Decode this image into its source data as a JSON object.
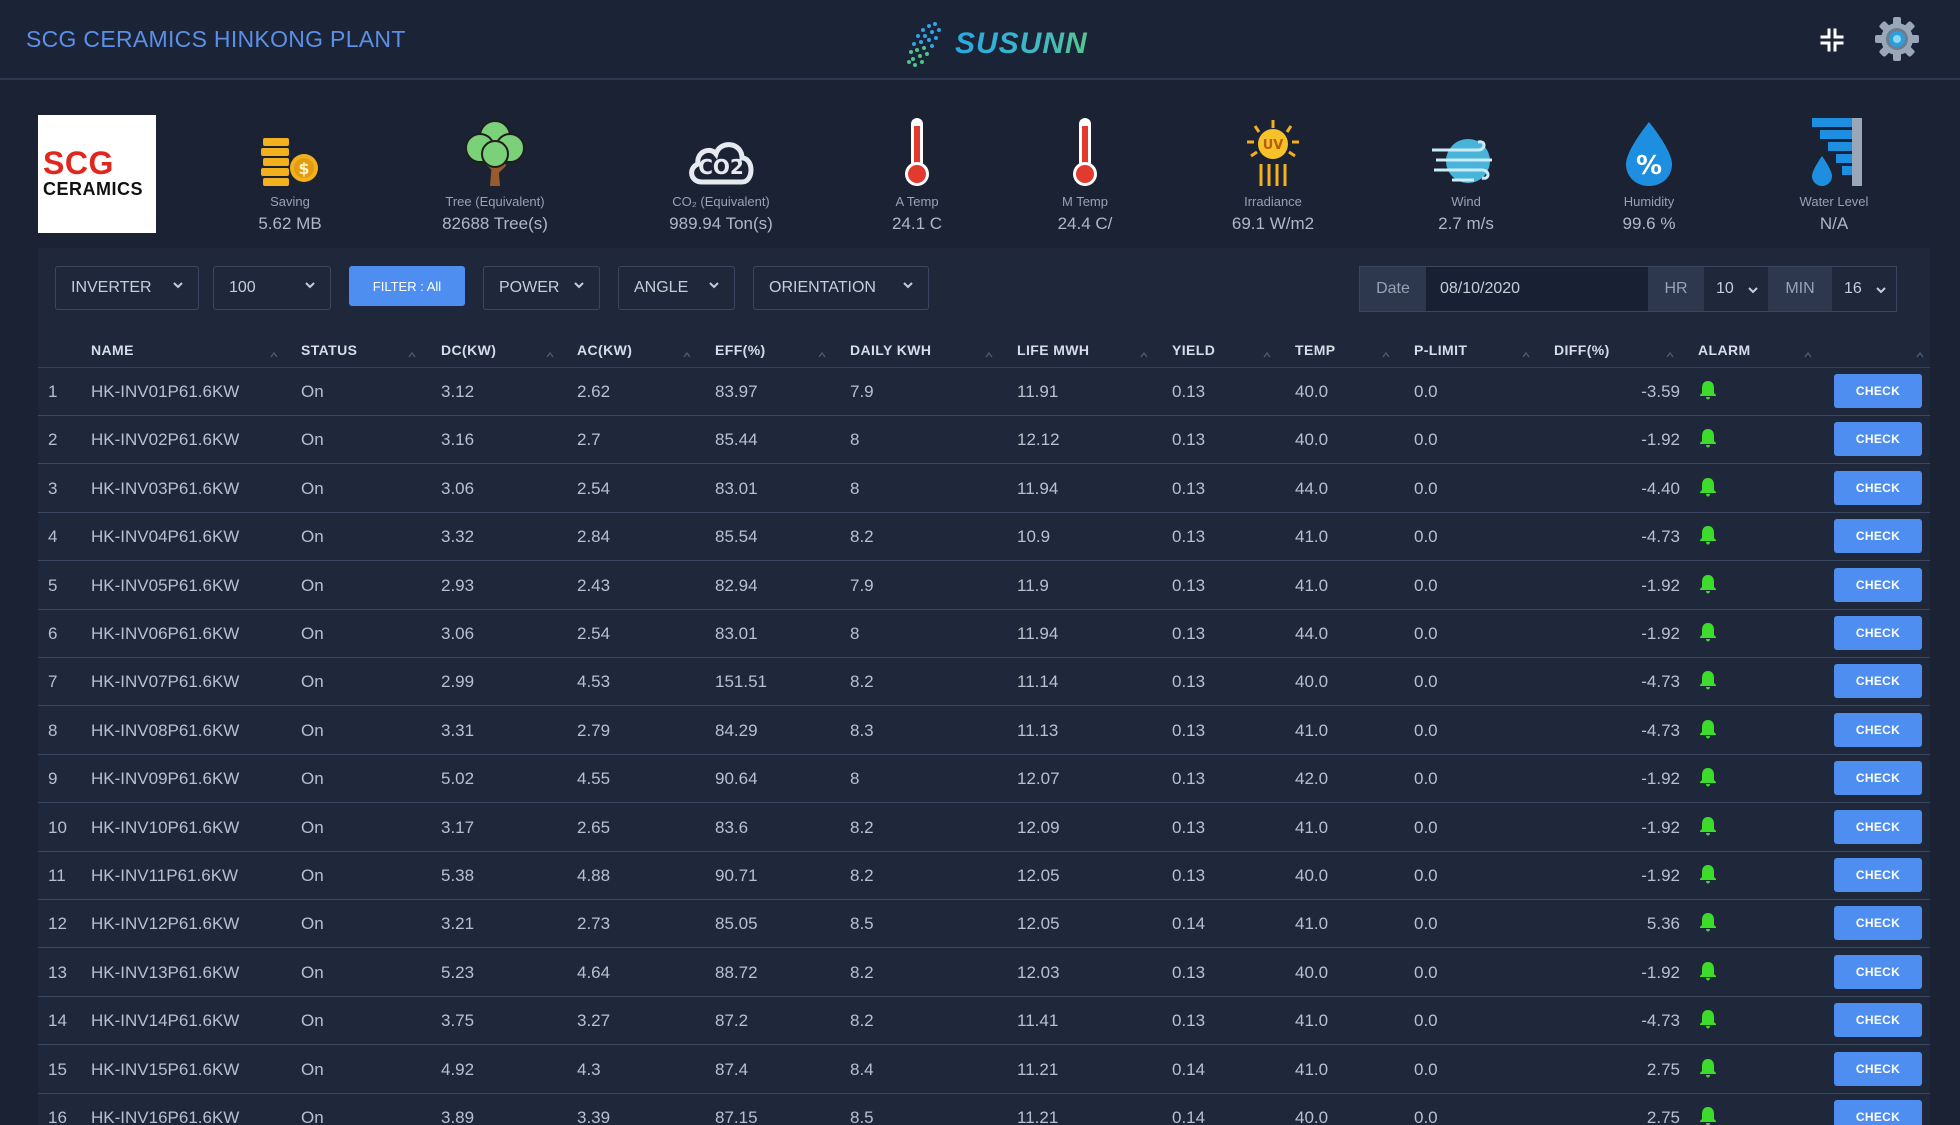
{
  "header": {
    "plant_title": "SCG CERAMICS HINKONG PLANT",
    "brand": "SUSUNN"
  },
  "logo": {
    "line1": "SCG",
    "line2": "CERAMICS"
  },
  "stats": [
    {
      "icon": "coins-icon",
      "label": "Saving",
      "value": "5.62 MB"
    },
    {
      "icon": "tree-icon",
      "label": "Tree (Equivalent)",
      "value": "82688 Tree(s)"
    },
    {
      "icon": "co2-cloud-icon",
      "label": "CO₂ (Equivalent)",
      "value": "989.94 Ton(s)"
    },
    {
      "icon": "thermometer-icon",
      "label": "A Temp",
      "value": "24.1 C"
    },
    {
      "icon": "thermometer-icon",
      "label": "M Temp",
      "value": "24.4 C/"
    },
    {
      "icon": "sun-uv-icon",
      "label": "Irradiance",
      "value": "69.1 W/m2"
    },
    {
      "icon": "wind-globe-icon",
      "label": "Wind",
      "value": "2.7 m/s"
    },
    {
      "icon": "humidity-drop-icon",
      "label": "Humidity",
      "value": "99.6 %"
    },
    {
      "icon": "water-level-icon",
      "label": "Water Level",
      "value": "N/A"
    }
  ],
  "controls": {
    "inverter": "INVERTER",
    "page_size": "100",
    "filter": "FILTER : All",
    "power": "POWER",
    "angle": "ANGLE",
    "orientation": "ORIENTATION",
    "date_label": "Date",
    "date_value": "08/10/2020",
    "hr_label": "HR",
    "hr_value": "10",
    "min_label": "MIN",
    "min_value": "16"
  },
  "table": {
    "columns": [
      "NAME",
      "STATUS",
      "DC(KW)",
      "AC(KW)",
      "EFF(%)",
      "DAILY KWH",
      "LIFE MWH",
      "YIELD",
      "TEMP",
      "P-LIMIT",
      "DIFF(%)",
      "ALARM"
    ],
    "check_label": "CHECK",
    "rows": [
      {
        "no": "1",
        "name": "HK-INV01P61.6KW",
        "status": "On",
        "dc": "3.12",
        "ac": "2.62",
        "eff": "83.97",
        "daily": "7.9",
        "life": "11.91",
        "yield": "0.13",
        "temp": "40.0",
        "plimit": "0.0",
        "diff": "-3.59"
      },
      {
        "no": "2",
        "name": "HK-INV02P61.6KW",
        "status": "On",
        "dc": "3.16",
        "ac": "2.7",
        "eff": "85.44",
        "daily": "8",
        "life": "12.12",
        "yield": "0.13",
        "temp": "40.0",
        "plimit": "0.0",
        "diff": "-1.92"
      },
      {
        "no": "3",
        "name": "HK-INV03P61.6KW",
        "status": "On",
        "dc": "3.06",
        "ac": "2.54",
        "eff": "83.01",
        "daily": "8",
        "life": "11.94",
        "yield": "0.13",
        "temp": "44.0",
        "plimit": "0.0",
        "diff": "-4.40"
      },
      {
        "no": "4",
        "name": "HK-INV04P61.6KW",
        "status": "On",
        "dc": "3.32",
        "ac": "2.84",
        "eff": "85.54",
        "daily": "8.2",
        "life": "10.9",
        "yield": "0.13",
        "temp": "41.0",
        "plimit": "0.0",
        "diff": "-4.73"
      },
      {
        "no": "5",
        "name": "HK-INV05P61.6KW",
        "status": "On",
        "dc": "2.93",
        "ac": "2.43",
        "eff": "82.94",
        "daily": "7.9",
        "life": "11.9",
        "yield": "0.13",
        "temp": "41.0",
        "plimit": "0.0",
        "diff": "-1.92"
      },
      {
        "no": "6",
        "name": "HK-INV06P61.6KW",
        "status": "On",
        "dc": "3.06",
        "ac": "2.54",
        "eff": "83.01",
        "daily": "8",
        "life": "11.94",
        "yield": "0.13",
        "temp": "44.0",
        "plimit": "0.0",
        "diff": "-1.92"
      },
      {
        "no": "7",
        "name": "HK-INV07P61.6KW",
        "status": "On",
        "dc": "2.99",
        "ac": "4.53",
        "eff": "151.51",
        "daily": "8.2",
        "life": "11.14",
        "yield": "0.13",
        "temp": "40.0",
        "plimit": "0.0",
        "diff": "-4.73"
      },
      {
        "no": "8",
        "name": "HK-INV08P61.6KW",
        "status": "On",
        "dc": "3.31",
        "ac": "2.79",
        "eff": "84.29",
        "daily": "8.3",
        "life": "11.13",
        "yield": "0.13",
        "temp": "41.0",
        "plimit": "0.0",
        "diff": "-4.73"
      },
      {
        "no": "9",
        "name": "HK-INV09P61.6KW",
        "status": "On",
        "dc": "5.02",
        "ac": "4.55",
        "eff": "90.64",
        "daily": "8",
        "life": "12.07",
        "yield": "0.13",
        "temp": "42.0",
        "plimit": "0.0",
        "diff": "-1.92"
      },
      {
        "no": "10",
        "name": "HK-INV10P61.6KW",
        "status": "On",
        "dc": "3.17",
        "ac": "2.65",
        "eff": "83.6",
        "daily": "8.2",
        "life": "12.09",
        "yield": "0.13",
        "temp": "41.0",
        "plimit": "0.0",
        "diff": "-1.92"
      },
      {
        "no": "11",
        "name": "HK-INV11P61.6KW",
        "status": "On",
        "dc": "5.38",
        "ac": "4.88",
        "eff": "90.71",
        "daily": "8.2",
        "life": "12.05",
        "yield": "0.13",
        "temp": "40.0",
        "plimit": "0.0",
        "diff": "-1.92"
      },
      {
        "no": "12",
        "name": "HK-INV12P61.6KW",
        "status": "On",
        "dc": "3.21",
        "ac": "2.73",
        "eff": "85.05",
        "daily": "8.5",
        "life": "12.05",
        "yield": "0.14",
        "temp": "41.0",
        "plimit": "0.0",
        "diff": "5.36"
      },
      {
        "no": "13",
        "name": "HK-INV13P61.6KW",
        "status": "On",
        "dc": "5.23",
        "ac": "4.64",
        "eff": "88.72",
        "daily": "8.2",
        "life": "12.03",
        "yield": "0.13",
        "temp": "40.0",
        "plimit": "0.0",
        "diff": "-1.92"
      },
      {
        "no": "14",
        "name": "HK-INV14P61.6KW",
        "status": "On",
        "dc": "3.75",
        "ac": "3.27",
        "eff": "87.2",
        "daily": "8.2",
        "life": "11.41",
        "yield": "0.13",
        "temp": "41.0",
        "plimit": "0.0",
        "diff": "-4.73"
      },
      {
        "no": "15",
        "name": "HK-INV15P61.6KW",
        "status": "On",
        "dc": "4.92",
        "ac": "4.3",
        "eff": "87.4",
        "daily": "8.4",
        "life": "11.21",
        "yield": "0.14",
        "temp": "41.0",
        "plimit": "0.0",
        "diff": "2.75"
      },
      {
        "no": "16",
        "name": "HK-INV16P61.6KW",
        "status": "On",
        "dc": "3.89",
        "ac": "3.39",
        "eff": "87.15",
        "daily": "8.5",
        "life": "11.21",
        "yield": "0.14",
        "temp": "40.0",
        "plimit": "0.0",
        "diff": "2.75"
      }
    ]
  },
  "colors": {
    "background": "#1a2233",
    "panel": "#1f283b",
    "accent_blue": "#4d8ef0",
    "title_blue": "#5c8fe6",
    "alarm_green": "#3ddc2a"
  }
}
